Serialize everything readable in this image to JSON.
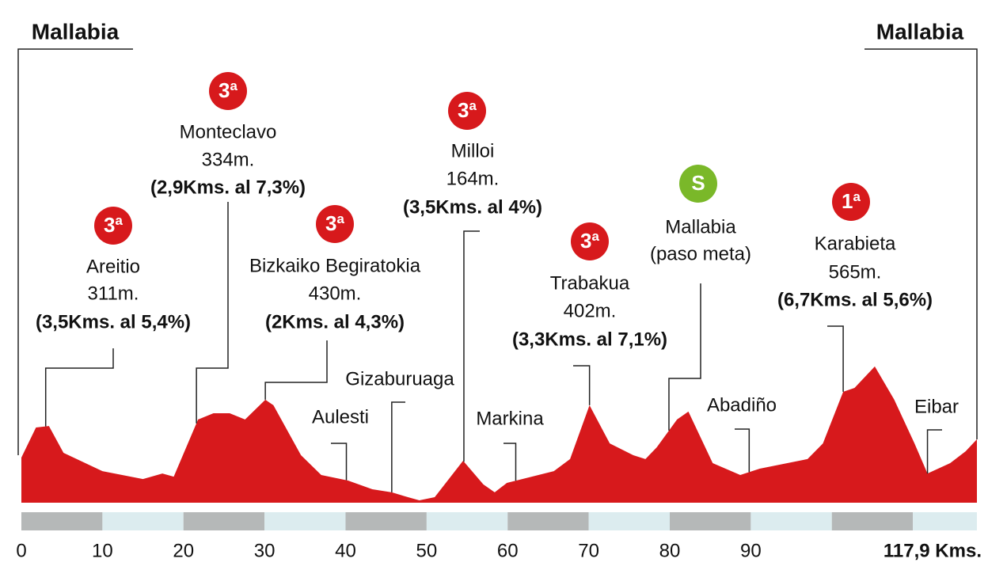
{
  "chart_data": {
    "type": "area",
    "color": "#d7191c",
    "x": [
      0,
      1.8,
      3.4,
      5.2,
      10,
      15,
      17.4,
      18.8,
      21.8,
      23.7,
      25.7,
      27.6,
      30.1,
      31.1,
      34.5,
      37,
      40.3,
      43.3,
      45.7,
      47.7,
      49.1,
      51,
      54.5,
      57,
      58.4,
      59.9,
      65.7,
      67.7,
      70.1,
      72.6,
      75.5,
      77,
      78.4,
      80.9,
      82.3,
      85.3,
      88.7,
      91.1,
      97,
      98.9,
      101.4,
      102.8,
      105.3,
      107.7,
      110.2,
      111.8,
      114.6,
      116.5,
      117.9
    ],
    "values": [
      187,
      312,
      318,
      207,
      131,
      98,
      121,
      108,
      345,
      371,
      371,
      345,
      427,
      404,
      197,
      115,
      92,
      56,
      43,
      23,
      10,
      23,
      174,
      76,
      43,
      82,
      131,
      181,
      404,
      246,
      197,
      181,
      230,
      345,
      378,
      164,
      115,
      141,
      181,
      246,
      460,
      476,
      565,
      427,
      246,
      121,
      164,
      213,
      263
    ],
    "xlim": [
      0,
      117.9
    ],
    "ylim": [
      0,
      650
    ],
    "xticks": [
      0,
      10,
      20,
      30,
      40,
      50,
      60,
      70,
      80,
      90,
      {
        "value": 117.9,
        "label": "117,9 Kms."
      }
    ],
    "start": "Mallabia",
    "finish": "Mallabia",
    "climbs": [
      {
        "category": "3ª",
        "badge_color": "#d7191c",
        "name": "Areitio",
        "altitude": "311m.",
        "detail": "(3,5Kms. al 5,4%)",
        "km": 3.0
      },
      {
        "category": "3ª",
        "badge_color": "#d7191c",
        "name": "Monteclavo",
        "altitude": "334m.",
        "detail": "(2,9Kms. al 7,3%)",
        "km": 21.6
      },
      {
        "category": "3ª",
        "badge_color": "#d7191c",
        "name": "Bizkaiko Begiratokia",
        "altitude": "430m.",
        "detail": "(2Kms. al 4,3%)",
        "km": 30.1
      },
      {
        "category": "3ª",
        "badge_color": "#d7191c",
        "name": "Milloi",
        "altitude": "164m.",
        "detail": "(3,5Kms. al 4%)",
        "km": 54.6
      },
      {
        "category": "3ª",
        "badge_color": "#d7191c",
        "name": "Trabakua",
        "altitude": "402m.",
        "detail": "(3,3Kms. al 7,1%)",
        "km": 70.1
      },
      {
        "category": "S",
        "badge_color": "#7ab829",
        "name": "Mallabia",
        "subtitle": "(paso meta)",
        "km": 79.9
      },
      {
        "category": "1ª",
        "badge_color": "#d7191c",
        "name": "Karabieta",
        "altitude": "565m.",
        "detail": "(6,7Kms. al 5,6%)",
        "km": 101.4
      }
    ],
    "places": [
      {
        "name": "Aulesti",
        "km": 40.1
      },
      {
        "name": "Gizaburuaga",
        "km": 45.7
      },
      {
        "name": "Markina",
        "km": 61.0
      },
      {
        "name": "Abadiño",
        "km": 89.8
      },
      {
        "name": "Eibar",
        "km": 111.8
      }
    ]
  }
}
